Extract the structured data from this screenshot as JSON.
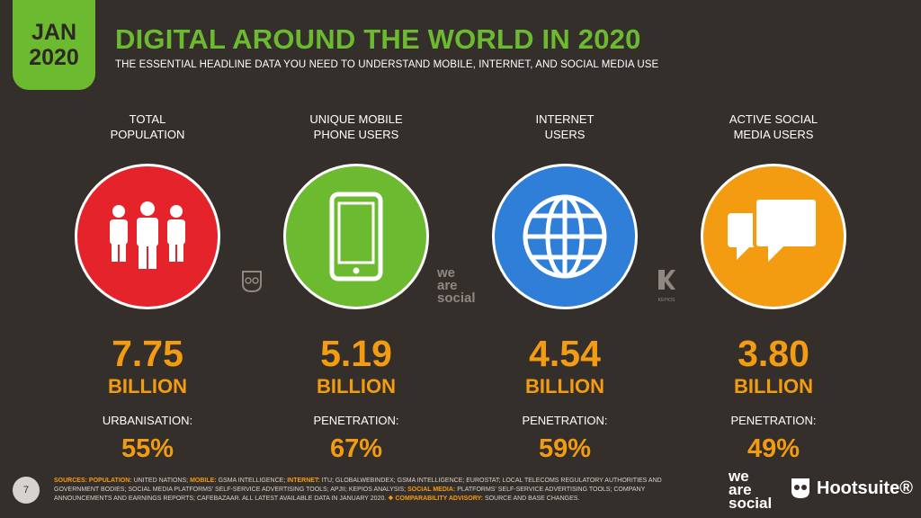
{
  "header": {
    "date_month": "JAN",
    "date_year": "2020",
    "title": "DIGITAL AROUND THE WORLD IN 2020",
    "subtitle": "THE ESSENTIAL HEADLINE DATA YOU NEED TO UNDERSTAND MOBILE, INTERNET, AND SOCIAL MEDIA USE"
  },
  "metrics": [
    {
      "label_line1": "TOTAL",
      "label_line2": "POPULATION",
      "icon": "people-icon",
      "color": "#e5232b",
      "value": "7.75",
      "unit": "BILLION",
      "sub_label": "URBANISATION:",
      "sub_value": "55%"
    },
    {
      "label_line1": "UNIQUE MOBILE",
      "label_line2": "PHONE USERS",
      "icon": "mobile-phone-icon",
      "color": "#6cba2f",
      "value": "5.19",
      "unit": "BILLION",
      "sub_label": "PENETRATION:",
      "sub_value": "67%"
    },
    {
      "label_line1": "INTERNET",
      "label_line2": "USERS",
      "icon": "globe-icon",
      "color": "#2f7ed8",
      "value": "4.54",
      "unit": "BILLION",
      "sub_label": "PENETRATION:",
      "sub_value": "59%"
    },
    {
      "label_line1": "ACTIVE SOCIAL",
      "label_line2": "MEDIA USERS",
      "icon": "chat-bubbles-icon",
      "color": "#f39c12",
      "value": "3.80",
      "unit": "BILLION",
      "sub_label": "PENETRATION:",
      "sub_value": "49%"
    }
  ],
  "watermarks": {
    "we_are_social_line1": "we",
    "we_are_social_line2": "are",
    "we_are_social_line3": "social",
    "kepios": "KEPIOS"
  },
  "footer": {
    "page_number": "7",
    "sources_label": "SOURCES:",
    "population_label": "POPULATION:",
    "population_text": "UNITED NATIONS;",
    "mobile_label": "MOBILE:",
    "mobile_text": "GSMA INTELLIGENCE;",
    "internet_label": "INTERNET:",
    "internet_text": "ITU; GLOBALWEBINDEX; GSMA INTELLIGENCE; EUROSTAT; LOCAL TELECOMS REGULATORY AUTHORITIES AND GOVERNMENT BODIES; SOCIAL MEDIA PLATFORMS' SELF-SERVICE ADVERTISING TOOLS; APJII; KEPIOS ANALYSIS;",
    "social_label": "SOCIAL MEDIA:",
    "social_text": "PLATFORMS' SELF-SERVICE ADVERTISING TOOLS; COMPANY ANNOUNCEMENTS AND EARNINGS REPORTS; CAFEBAZAAR. ALL LATEST AVAILABLE DATA IN JANUARY 2020.",
    "advisory_label": "❖ COMPARABILITY ADVISORY:",
    "advisory_text": "SOURCE AND BASE CHANGES.",
    "logo_social_line1": "we",
    "logo_social_line2": "are",
    "logo_social_line3": "social",
    "logo_hootsuite": "Hootsuite®"
  }
}
